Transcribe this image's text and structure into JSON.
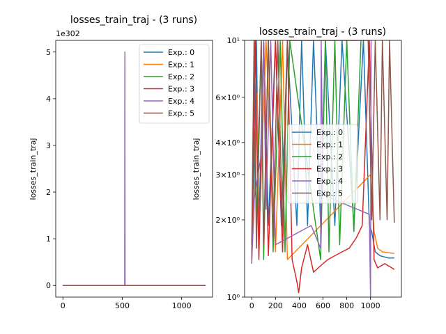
{
  "chart_data": [
    {
      "type": "line",
      "title": "losses_train_traj - (3 runs)",
      "xlabel": "",
      "ylabel": "losses_train_traj",
      "offset_text": "1e302",
      "xlim": [
        -60,
        1260
      ],
      "ylim": [
        -0.25,
        5.25
      ],
      "xticks": [
        0,
        500,
        1000
      ],
      "xtick_labels": [
        "0",
        "500",
        "1000"
      ],
      "yticks": [
        0,
        1,
        2,
        3,
        4,
        5
      ],
      "ytick_labels": [
        "0",
        "1",
        "2",
        "3",
        "4",
        "5"
      ],
      "legend_loc": "upper-right",
      "series": [
        {
          "name": "Exp.: 0",
          "color": "#1f77b4",
          "x": [
            0,
            1200
          ],
          "y": [
            0,
            0
          ]
        },
        {
          "name": "Exp.: 1",
          "color": "#ff7f0e",
          "x": [
            0,
            1200
          ],
          "y": [
            0,
            0
          ]
        },
        {
          "name": "Exp.: 2",
          "color": "#2ca02c",
          "x": [
            0,
            1200
          ],
          "y": [
            0,
            0
          ]
        },
        {
          "name": "Exp.: 3",
          "color": "#d62728",
          "x": [
            0,
            1200
          ],
          "y": [
            0,
            0
          ]
        },
        {
          "name": "Exp.: 4",
          "color": "#9467bd",
          "x": [
            0,
            520,
            522,
            524,
            1200
          ],
          "y": [
            0,
            0,
            5,
            0,
            0
          ]
        },
        {
          "name": "Exp.: 5",
          "color": "#8c564b",
          "x": [
            0,
            1200
          ],
          "y": [
            0,
            0
          ]
        }
      ]
    },
    {
      "type": "line",
      "title": "losses_train_traj - (3 runs)",
      "xlabel": "",
      "ylabel": "losses_train_traj",
      "yscale": "log",
      "xlim": [
        -60,
        1260
      ],
      "ylim": [
        1,
        10
      ],
      "xticks": [
        0,
        200,
        400,
        600,
        800,
        1000
      ],
      "xtick_labels": [
        "0",
        "200",
        "400",
        "600",
        "800",
        "1000"
      ],
      "yticks": [
        1,
        2,
        3,
        4,
        6,
        10
      ],
      "ytick_labels": [
        "10⁰",
        "2×10⁰",
        "3×10⁰",
        "4×10⁰",
        "6×10⁰",
        "10¹"
      ],
      "legend_loc": "center-right",
      "series": [
        {
          "name": "Exp.: 0",
          "color": "#1f77b4",
          "x": [
            0,
            20,
            40,
            60,
            100,
            140,
            200,
            250,
            300,
            380,
            420,
            470,
            520,
            580,
            620,
            700,
            760,
            860,
            940,
            990,
            1010,
            1040,
            1080,
            1150,
            1200
          ],
          "y": [
            1.5,
            2.5,
            10,
            1.9,
            10,
            1.9,
            10,
            1.9,
            10,
            1.9,
            10,
            1.9,
            10,
            1.9,
            10,
            1.9,
            10,
            1.9,
            10,
            1.9,
            1.8,
            1.5,
            1.45,
            1.42,
            1.42
          ]
        },
        {
          "name": "Exp.: 1",
          "color": "#ff7f0e",
          "x": [
            0,
            20,
            45,
            60,
            120,
            200,
            260,
            300,
            1000,
            1030,
            1060,
            1100,
            1200
          ],
          "y": [
            1.4,
            2.2,
            6.2,
            1.7,
            10,
            1.5,
            10,
            1.4,
            3.0,
            1.8,
            1.55,
            1.5,
            1.48
          ]
        },
        {
          "name": "Exp.: 2",
          "color": "#2ca02c",
          "x": [
            0,
            20,
            40,
            80,
            100,
            140,
            180,
            240,
            280,
            320,
            580,
            620,
            650,
            700,
            740,
            800,
            860,
            920
          ],
          "y": [
            1.4,
            4.5,
            2.0,
            10,
            1.4,
            10,
            1.5,
            10,
            1.5,
            10,
            1.4,
            10,
            1.5,
            10,
            1.6,
            10,
            1.8,
            10
          ]
        },
        {
          "name": "Exp.: 3",
          "color": "#d62728",
          "x": [
            0,
            30,
            60,
            100,
            140,
            200,
            260,
            300,
            340,
            380,
            395,
            420,
            470,
            520,
            560,
            600,
            640,
            700,
            760,
            820,
            880,
            930,
            990,
            1030,
            1060,
            1120,
            1180,
            1200
          ],
          "y": [
            1.35,
            10,
            1.4,
            10,
            1.45,
            10,
            1.5,
            10,
            1.4,
            1.15,
            1.04,
            1.3,
            1.6,
            1.25,
            1.3,
            1.35,
            1.4,
            1.45,
            1.5,
            1.55,
            1.7,
            1.9,
            10,
            1.4,
            1.3,
            1.35,
            1.3,
            1.28
          ]
        },
        {
          "name": "Exp.: 4",
          "color": "#9467bd",
          "x": [
            0,
            20,
            80,
            100,
            120,
            160,
            200,
            500,
            580,
            585,
            600,
            990,
            1000,
            1005
          ],
          "y": [
            1.35,
            2.4,
            3.6,
            10,
            2.2,
            10,
            1.6,
            1.9,
            1.55,
            10,
            2.5,
            2.1,
            1.0,
            10
          ]
        },
        {
          "name": "Exp.: 5",
          "color": "#8c564b",
          "x": [
            0,
            20,
            40,
            80,
            100,
            140,
            180,
            220,
            260,
            300,
            980,
            1010,
            1040,
            1080,
            1100,
            1140,
            1160,
            1200
          ],
          "y": [
            1.6,
            10,
            1.55,
            10,
            1.6,
            10,
            1.7,
            10,
            1.8,
            10,
            10,
            2.0,
            10,
            2.0,
            10,
            2.0,
            10,
            1.95
          ]
        }
      ]
    }
  ]
}
